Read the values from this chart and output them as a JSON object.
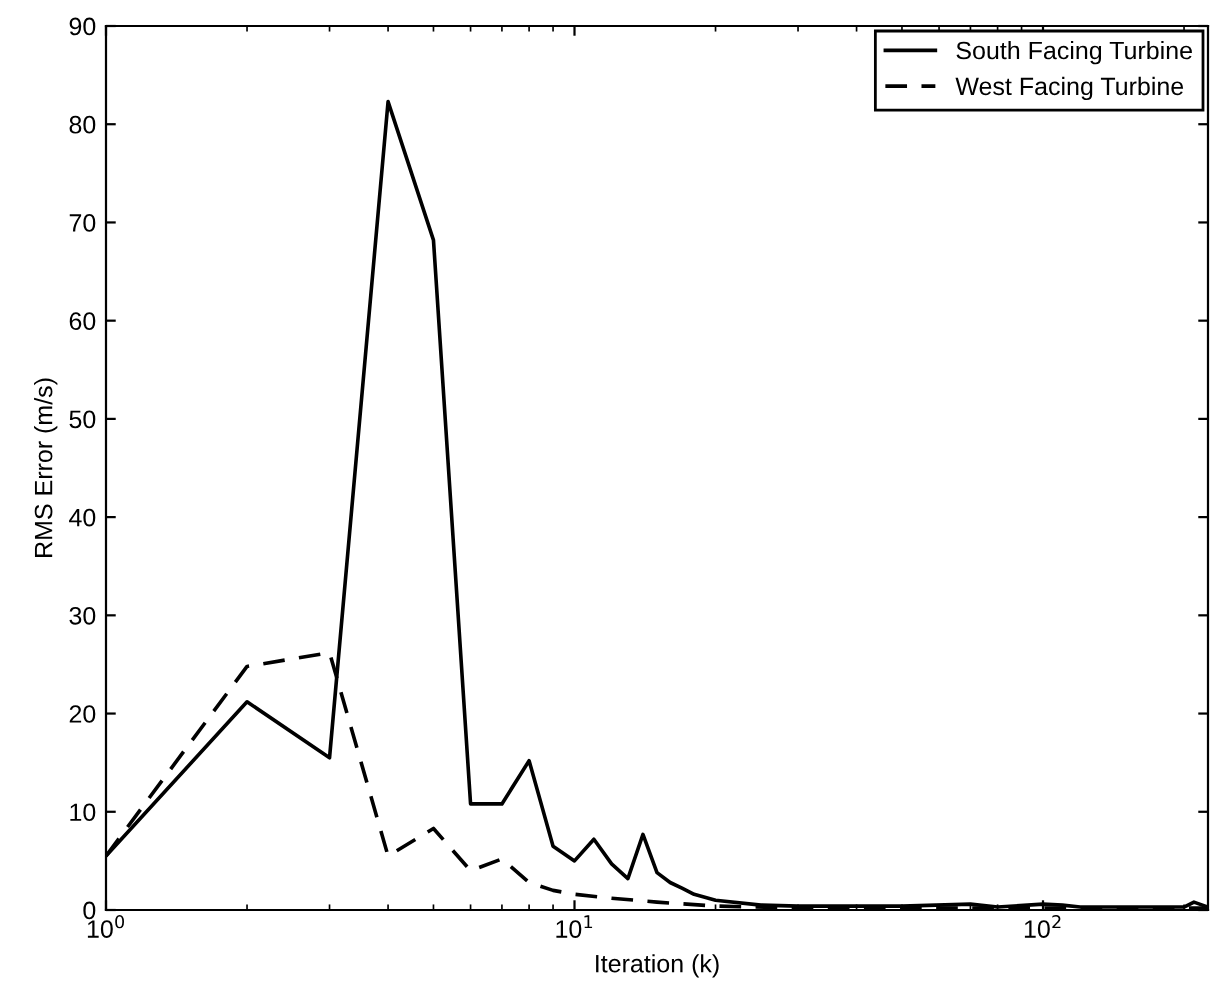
{
  "chart_data": {
    "type": "line",
    "xlabel": "Iteration (k)",
    "ylabel": "RMS Error (m/s)",
    "log": "x",
    "xlim": [
      1,
      225
    ],
    "xticks": [
      {
        "value": 1,
        "label": "10$^{0}$"
      },
      {
        "value": 10,
        "label": "10$^{1}$"
      },
      {
        "value": 100,
        "label": "10$^{2}$"
      }
    ],
    "ylim": [
      0,
      90
    ],
    "yticks": [
      0,
      10,
      20,
      30,
      40,
      50,
      60,
      70,
      80,
      90
    ],
    "legend": "top right",
    "grid": false,
    "series": [
      {
        "name": "South Facing Turbine",
        "color": "#000000",
        "line_style": "solid",
        "x": [
          1,
          2,
          3,
          4,
          5,
          6,
          7,
          8,
          9,
          10,
          11,
          12,
          13,
          14,
          15,
          16,
          17,
          18,
          20,
          25,
          30,
          50,
          70,
          80,
          100,
          110,
          120,
          200,
          210,
          225
        ],
        "values": [
          5.5,
          21.2,
          15.5,
          82.3,
          68.2,
          10.8,
          10.8,
          15.2,
          6.5,
          5,
          7.2,
          4.7,
          3.2,
          7.7,
          3.8,
          2.8,
          2.2,
          1.6,
          1,
          0.5,
          0.4,
          0.4,
          0.6,
          0.3,
          0.6,
          0.5,
          0.3,
          0.3,
          0.8,
          0.3
        ]
      },
      {
        "name": "West Facing Turbine",
        "color": "#000000",
        "line_style": "dashed",
        "x": [
          1,
          2,
          3,
          4,
          5,
          6,
          7,
          8,
          9,
          10,
          12,
          15,
          20,
          30,
          100,
          225
        ],
        "values": [
          5.5,
          24.8,
          26.2,
          5.5,
          8.3,
          4,
          5.2,
          2.8,
          2,
          1.6,
          1.2,
          0.8,
          0.4,
          0.2,
          0.2,
          0.2
        ]
      }
    ]
  }
}
